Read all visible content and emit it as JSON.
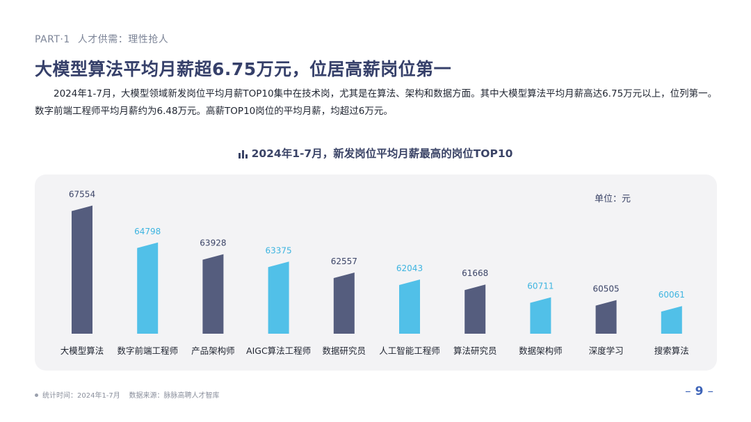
{
  "header": {
    "part": "PART·1",
    "section": "人才供需：理性抢人",
    "headline": "大模型算法平均月薪超6.75万元，位居高薪岗位第一",
    "body": "2024年1-7月，大模型领域新发岗位平均月薪TOP10集中在技术岗，尤其是在算法、架构和数据方面。其中大模型算法平均月薪高达6.75万元以上，位列第一。数字前端工程师平均月薪约为6.48万元。高薪TOP10岗位的平均月薪，均超过6万元。"
  },
  "chart_data": {
    "type": "bar",
    "title": "2024年1-7月，新发岗位平均月薪最高的岗位TOP10",
    "unit_label": "单位：元",
    "categories": [
      "大模型算法",
      "数字前端工程师",
      "产品架构师",
      "AIGC算法工程师",
      "数据研究员",
      "人工智能工程师",
      "算法研究员",
      "数据架构师",
      "深度学习",
      "搜索算法"
    ],
    "values": [
      67554,
      64798,
      63928,
      63375,
      62557,
      62043,
      61668,
      60711,
      60505,
      60061
    ],
    "value_labels": [
      "67554",
      "64798",
      "63928",
      "63375",
      "62557",
      "62043",
      "61668",
      "60711",
      "60505",
      "60061"
    ],
    "xlabel": "",
    "ylabel": "",
    "ylim": [
      58000,
      68000
    ],
    "grid": false,
    "colors": {
      "dark": "#555d7e",
      "light": "#51c0e8",
      "dark_label": "#3b4467",
      "light_label": "#3db4e0"
    }
  },
  "footer": {
    "note": "统计时间：2024年1-7月    数据来源：脉脉高聘人才智库",
    "page_number": "9"
  }
}
